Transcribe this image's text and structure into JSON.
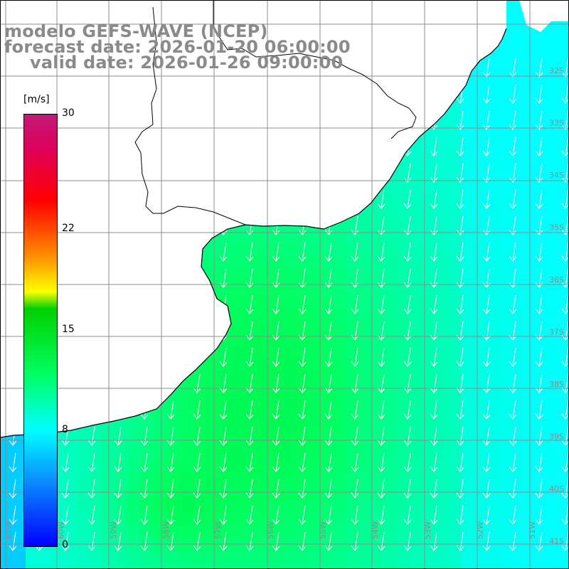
{
  "title": {
    "line1": "modelo GEFS-WAVE (NCEP)",
    "line2": "forecast date: 2026-01-20 06:00:00",
    "line3": "valid date: 2026-01-26 09:00:00"
  },
  "colorbar": {
    "units": "[m/s]",
    "ticks": [
      {
        "value": 30,
        "label": "30"
      },
      {
        "value": 22,
        "label": "22"
      },
      {
        "value": 15,
        "label": "15"
      },
      {
        "value": 8,
        "label": "8"
      },
      {
        "value": 0,
        "label": "0"
      }
    ],
    "min": 0,
    "max": 30
  },
  "map": {
    "lat_labels": [
      "32S",
      "33S",
      "34S",
      "35S",
      "36S",
      "37S",
      "38S",
      "39S",
      "40S",
      "41S"
    ],
    "lon_labels": [
      "61W",
      "60W",
      "59W",
      "58W",
      "57W",
      "56W",
      "55W",
      "54W",
      "53W",
      "52W",
      "51W"
    ],
    "wind_direction": "south-southwest",
    "colors": {
      "land": "#ffffff",
      "grid": "#8c8c8c",
      "coast": "#000000",
      "arrow": "#ffffff"
    }
  }
}
